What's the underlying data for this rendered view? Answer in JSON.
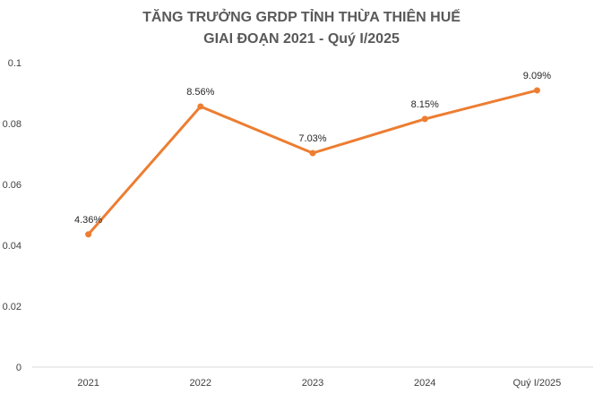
{
  "chart_data": {
    "type": "line",
    "title": "TĂNG TRƯỞNG GRDP TỈNH THỪA THIÊN HUẾ",
    "subtitle": "GIAI ĐOẠN 2021 - Quý I/2025",
    "categories": [
      "2021",
      "2022",
      "2023",
      "2024",
      "Quý I/2025"
    ],
    "series": [
      {
        "values": [
          0.0436,
          0.0856,
          0.0703,
          0.0815,
          0.0909
        ],
        "data_labels": [
          "4.36%",
          "8.56%",
          "7.03%",
          "8.15%",
          "9.09%"
        ],
        "color": "#ED7D31"
      }
    ],
    "y_ticks": [
      "0",
      "0.02",
      "0.04",
      "0.06",
      "0.08",
      "0.1"
    ],
    "ylim": [
      0,
      0.1
    ],
    "grid": false,
    "legend": "none"
  }
}
